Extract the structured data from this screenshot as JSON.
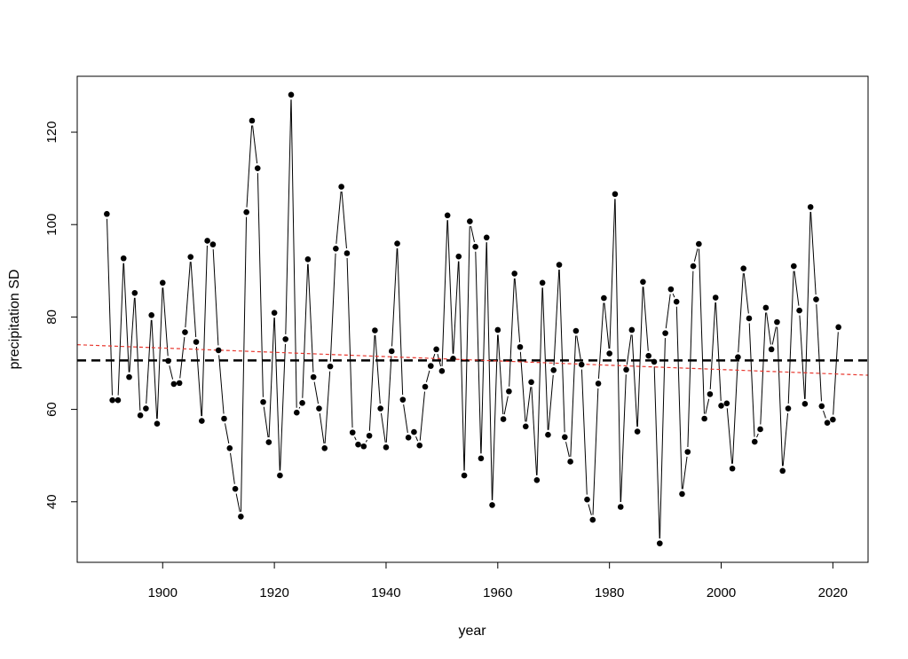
{
  "chart_data": {
    "type": "line",
    "title": "",
    "xlabel": "year",
    "ylabel": "precipitation SD",
    "xlim": [
      1884.7,
      2026.3
    ],
    "ylim": [
      26.9,
      132.1
    ],
    "xticks": [
      1900,
      1920,
      1940,
      1960,
      1980,
      2000,
      2020
    ],
    "yticks": [
      40,
      60,
      80,
      100,
      120
    ],
    "grid": false,
    "legend": "none",
    "x": [
      1890,
      1891,
      1892,
      1893,
      1894,
      1895,
      1896,
      1897,
      1898,
      1899,
      1900,
      1901,
      1902,
      1903,
      1904,
      1905,
      1906,
      1907,
      1908,
      1909,
      1910,
      1911,
      1912,
      1913,
      1914,
      1915,
      1916,
      1917,
      1918,
      1919,
      1920,
      1921,
      1922,
      1923,
      1924,
      1925,
      1926,
      1927,
      1928,
      1929,
      1930,
      1931,
      1932,
      1933,
      1934,
      1935,
      1936,
      1937,
      1938,
      1939,
      1940,
      1941,
      1942,
      1943,
      1944,
      1945,
      1946,
      1947,
      1948,
      1949,
      1950,
      1951,
      1952,
      1953,
      1954,
      1955,
      1956,
      1957,
      1958,
      1959,
      1960,
      1961,
      1962,
      1963,
      1964,
      1965,
      1966,
      1967,
      1968,
      1969,
      1970,
      1971,
      1972,
      1973,
      1974,
      1975,
      1976,
      1977,
      1978,
      1979,
      1980,
      1981,
      1982,
      1983,
      1984,
      1985,
      1986,
      1987,
      1988,
      1989,
      1990,
      1991,
      1992,
      1993,
      1994,
      1995,
      1996,
      1997,
      1998,
      1999,
      2000,
      2001,
      2002,
      2003,
      2004,
      2005,
      2006,
      2007,
      2008,
      2009,
      2010,
      2011,
      2012,
      2013,
      2014,
      2015,
      2016,
      2017,
      2018,
      2019,
      2020,
      2021
    ],
    "series": [
      {
        "values": [
          102.3,
          62.0,
          62.0,
          92.7,
          67.0,
          85.2,
          58.7,
          60.2,
          80.4,
          56.9,
          87.4,
          70.5,
          65.5,
          65.7,
          76.7,
          93.0,
          74.6,
          57.5,
          96.5,
          95.7,
          72.8,
          58.0,
          51.6,
          42.8,
          36.8,
          102.7,
          122.5,
          112.2,
          61.6,
          52.9,
          80.9,
          45.7,
          75.2,
          128.1,
          59.3,
          61.4,
          92.5,
          67.0,
          60.2,
          51.6,
          69.3,
          94.8,
          108.2,
          93.8,
          55.0,
          52.4,
          52.0,
          54.3,
          77.1,
          60.2,
          51.8,
          72.6,
          95.9,
          62.1,
          53.9,
          55.1,
          52.2,
          64.9,
          69.4,
          73.0,
          68.3,
          102.0,
          71.0,
          93.1,
          45.7,
          100.7,
          95.2,
          49.4,
          97.2,
          39.3,
          77.2,
          57.9,
          63.9,
          89.4,
          73.5,
          56.3,
          65.9,
          44.7,
          87.4,
          54.5,
          68.5,
          91.3,
          54.0,
          48.7,
          77.0,
          69.7,
          40.5,
          36.1,
          65.6,
          84.1,
          72.1,
          106.6,
          38.9,
          68.6,
          77.2,
          55.2,
          87.6,
          71.6,
          70.3,
          31.0,
          76.5,
          86.0,
          83.3,
          41.7,
          50.8,
          91.0,
          95.8,
          58.0,
          63.3,
          84.2,
          60.8,
          61.3,
          47.2,
          71.3,
          90.5,
          79.7,
          53.0,
          55.7,
          82.0,
          73.0,
          78.9,
          46.7,
          60.2,
          91.0,
          81.4,
          61.2,
          103.8,
          83.8,
          60.7,
          57.1,
          57.8,
          77.8
        ]
      }
    ],
    "mean_line": {
      "value": 70.6,
      "color": "#000000",
      "style": "dashed"
    },
    "trend_line": {
      "x": [
        1884.7,
        2026.3
      ],
      "y": [
        74.0,
        67.4
      ],
      "color": "#e8382f",
      "style": "dashed"
    }
  }
}
